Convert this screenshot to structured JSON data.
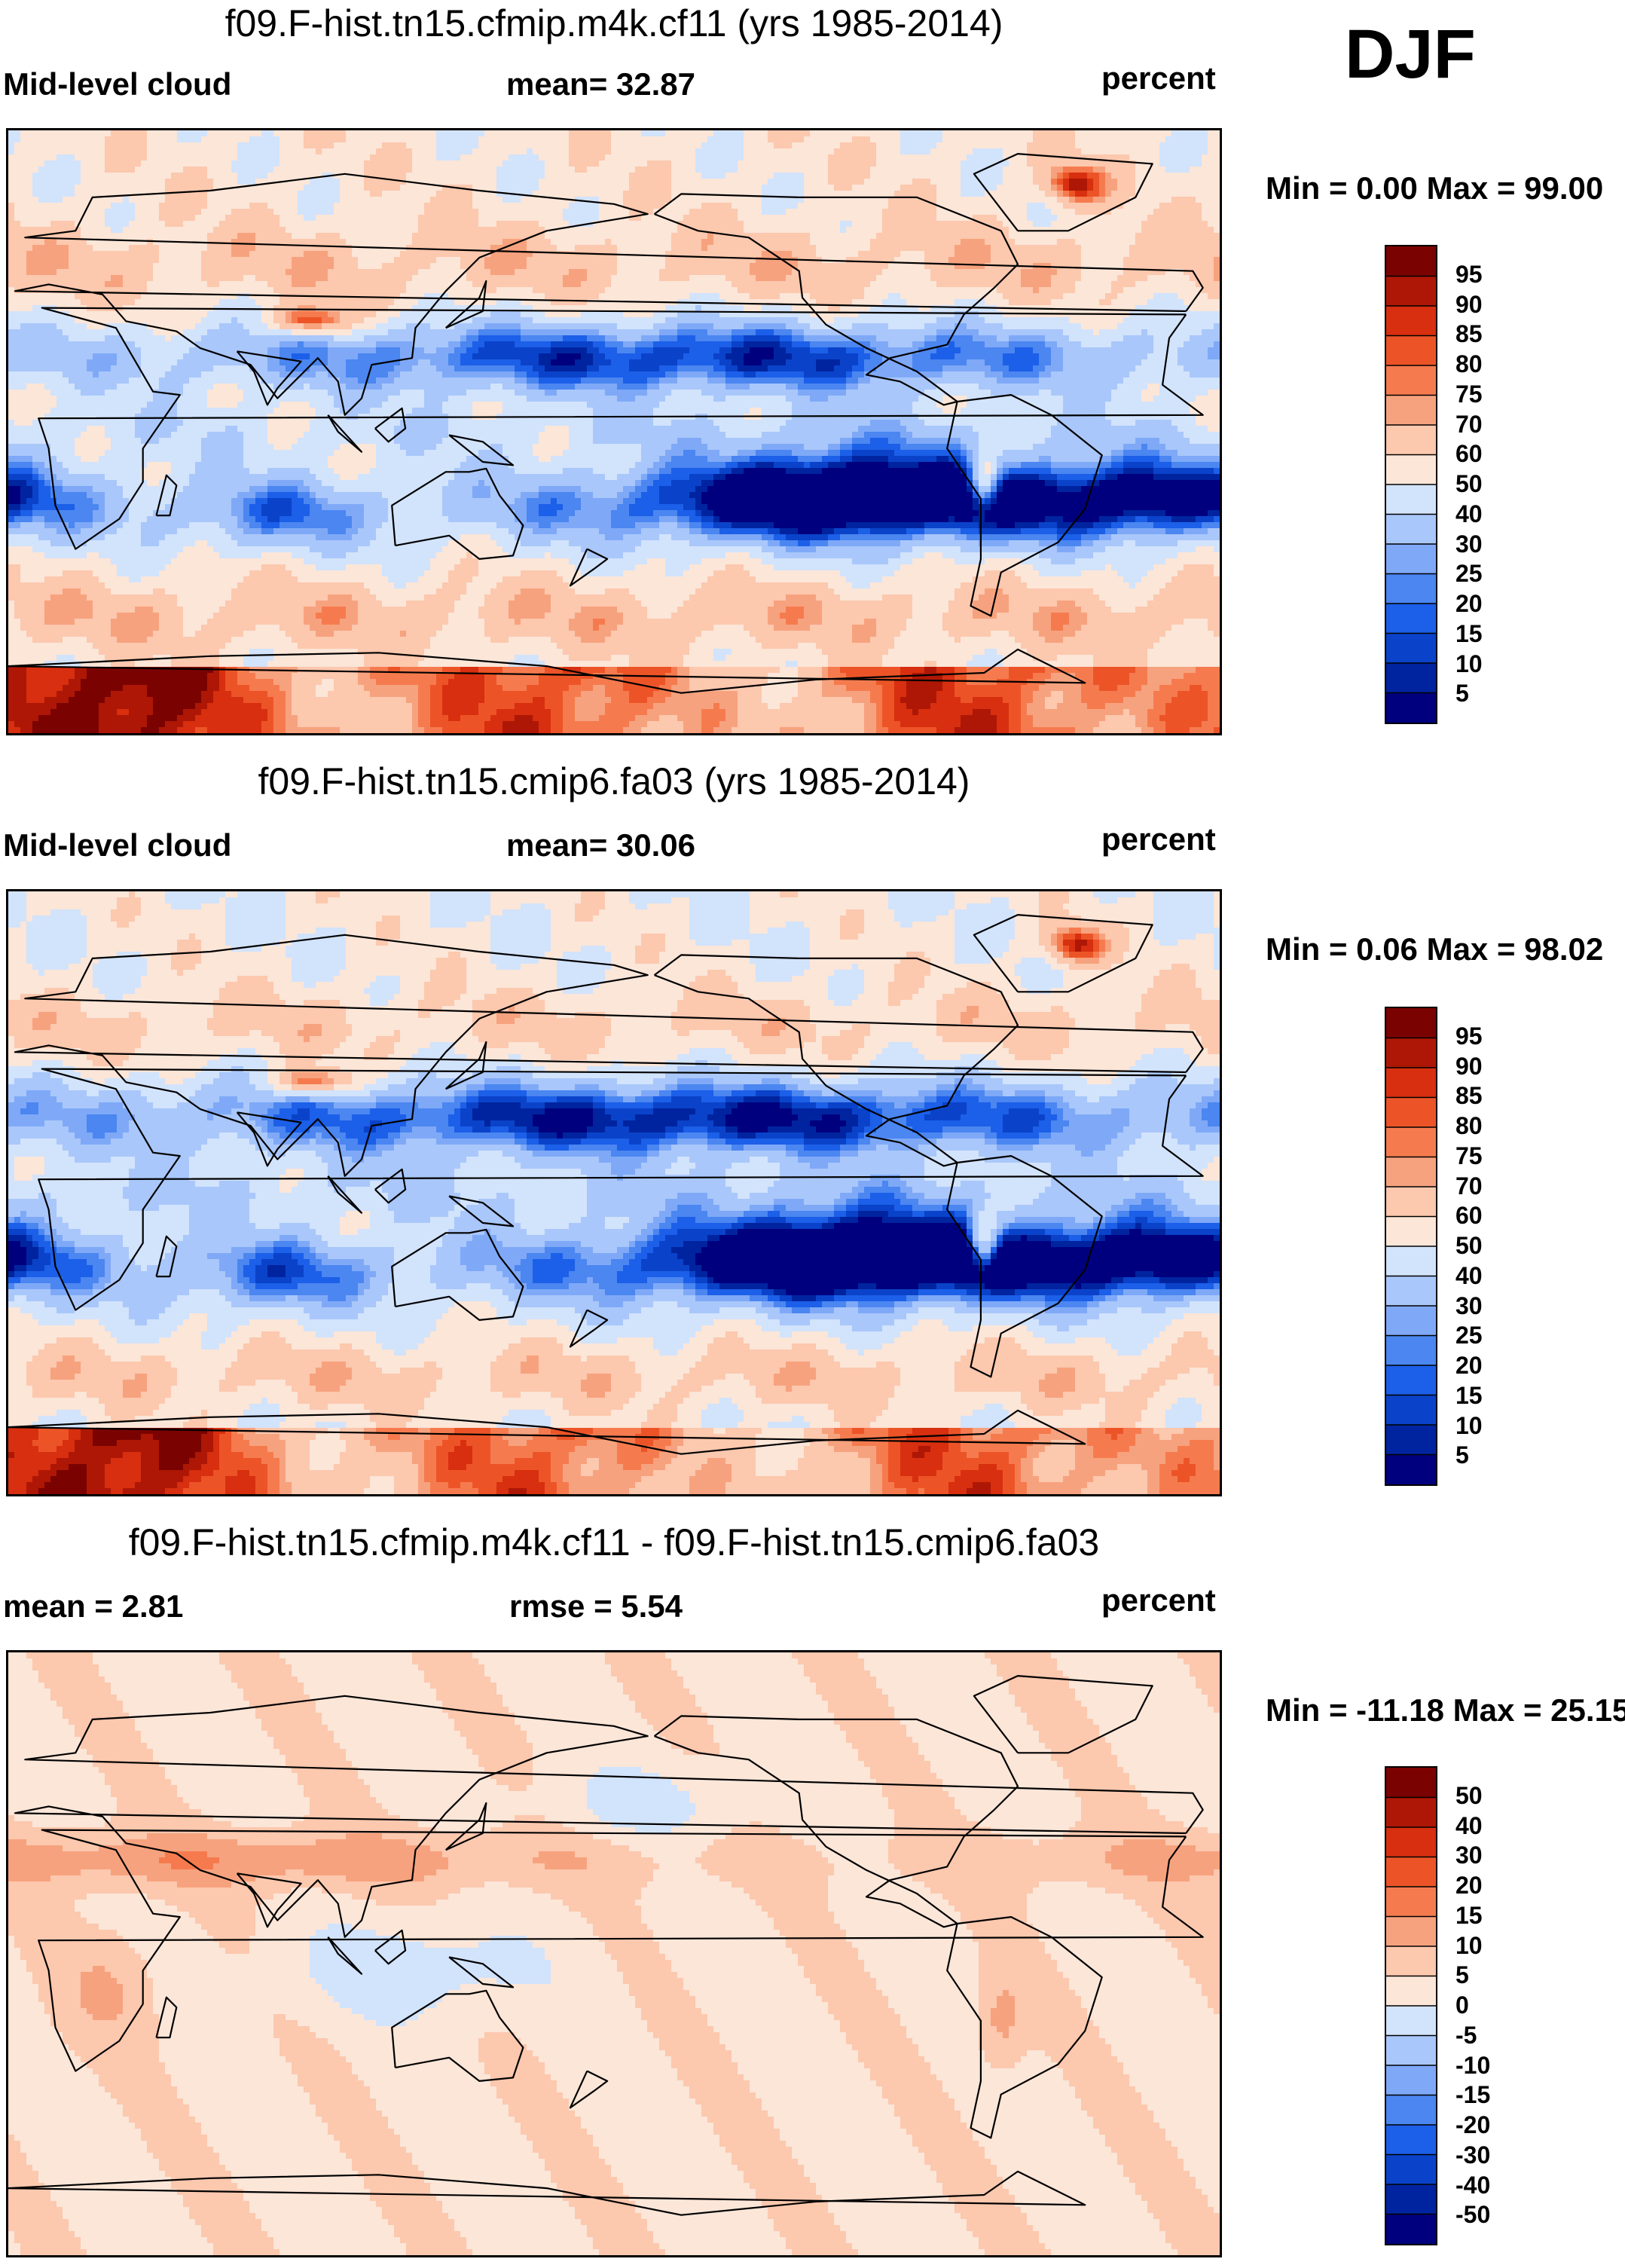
{
  "season": "DJF",
  "colors": {
    "abs_palette": [
      "#00007f",
      "#00249f",
      "#0a43c9",
      "#1c5fe8",
      "#4b86f1",
      "#7fa9f7",
      "#a9c7fa",
      "#d2e3fc",
      "#fbe6d8",
      "#fcc8ae",
      "#f7a27e",
      "#f57b4f",
      "#ec5427",
      "#d72f0f",
      "#ae1705",
      "#7a0301"
    ],
    "diff_palette": [
      "#00007f",
      "#00249f",
      "#0a43c9",
      "#1c5fe8",
      "#4b86f1",
      "#7fa9f7",
      "#a9c7fa",
      "#d2e3fc",
      "#fbe6d8",
      "#fcc8ae",
      "#f7a27e",
      "#f57b4f",
      "#ec5427",
      "#d72f0f",
      "#ae1705",
      "#7a0301"
    ],
    "coastline": "#000000"
  },
  "chart_data": [
    {
      "type": "heatmap",
      "title": "f09.F-hist.tn15.cfmip.m4k.cf11 (yrs 1985-2014)",
      "left_label": "Mid-level cloud",
      "center_label": "mean=  32.87",
      "units": "percent",
      "minmax": "Min =   0.00 Max =  99.00",
      "mean": 32.87,
      "min": 0.0,
      "max": 99.0,
      "colorbar_levels": [
        "5",
        "10",
        "15",
        "20",
        "25",
        "30",
        "40",
        "50",
        "60",
        "70",
        "75",
        "80",
        "85",
        "90",
        "95"
      ],
      "field": "mid_level_cloud_fraction"
    },
    {
      "type": "heatmap",
      "title": "f09.F-hist.tn15.cmip6.fa03 (yrs 1985-2014)",
      "left_label": "Mid-level cloud",
      "center_label": "mean=  30.06",
      "units": "percent",
      "minmax": "Min =   0.06 Max =  98.02",
      "mean": 30.06,
      "min": 0.06,
      "max": 98.02,
      "colorbar_levels": [
        "5",
        "10",
        "15",
        "20",
        "25",
        "30",
        "40",
        "50",
        "60",
        "70",
        "75",
        "80",
        "85",
        "90",
        "95"
      ],
      "field": "mid_level_cloud_fraction"
    },
    {
      "type": "heatmap",
      "title": "f09.F-hist.tn15.cfmip.m4k.cf11 - f09.F-hist.tn15.cmip6.fa03",
      "left_label": "mean =   2.81",
      "center_label": "rmse =   5.54",
      "units": "percent",
      "minmax": "Min = -11.18 Max =  25.15",
      "mean": 2.81,
      "rmse": 5.54,
      "min": -11.18,
      "max": 25.15,
      "colorbar_levels": [
        "-50",
        "-40",
        "-30",
        "-20",
        "-15",
        "-10",
        "-5",
        "0",
        "5",
        "10",
        "15",
        "20",
        "30",
        "40",
        "50"
      ],
      "field": "mid_level_cloud_difference"
    }
  ]
}
